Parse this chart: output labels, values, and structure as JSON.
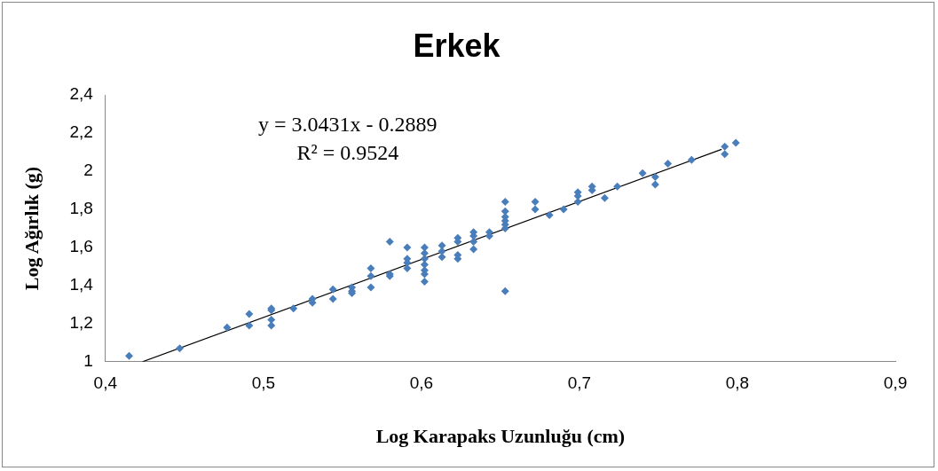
{
  "chart_data": {
    "type": "scatter",
    "title": "Erkek",
    "xlabel": "Log Karapaks Uzunluğu (cm)",
    "ylabel": "Log Ağırlık (g)",
    "xlim": [
      0.4,
      0.9
    ],
    "xticks": [
      {
        "value": 0.4,
        "label": "0,4"
      },
      {
        "value": 0.5,
        "label": "0,5"
      },
      {
        "value": 0.6,
        "label": "0,6"
      },
      {
        "value": 0.7,
        "label": "0,7"
      },
      {
        "value": 0.8,
        "label": "0,8"
      },
      {
        "value": 0.9,
        "label": "0,9"
      }
    ],
    "ylim": [
      1,
      2.4
    ],
    "yticks": [
      1,
      {
        "value": 1.2,
        "label": "1,2"
      },
      {
        "value": 1.4,
        "label": "1,4"
      },
      {
        "value": 1.6,
        "label": "1,6"
      },
      {
        "value": 1.8,
        "label": "1,8"
      },
      2,
      {
        "value": 2.2,
        "label": "2,2"
      },
      {
        "value": 2.4,
        "label": "2,4"
      }
    ],
    "grid": false,
    "legend": false,
    "marker": "diamond",
    "annotations": [
      "y = 3.0431x - 0.2889",
      "R² = 0.9524"
    ],
    "series": [
      {
        "color": "#4a7ebb",
        "x": [
          0.415,
          0.447,
          0.477,
          0.491,
          0.491,
          0.505,
          0.505,
          0.505,
          0.505,
          0.519,
          0.531,
          0.531,
          0.544,
          0.544,
          0.556,
          0.556,
          0.556,
          0.568,
          0.568,
          0.568,
          0.58,
          0.58,
          0.58,
          0.591,
          0.591,
          0.591,
          0.591,
          0.602,
          0.602,
          0.602,
          0.602,
          0.602,
          0.602,
          0.602,
          0.613,
          0.613,
          0.613,
          0.623,
          0.623,
          0.623,
          0.623,
          0.633,
          0.633,
          0.633,
          0.633,
          0.643,
          0.643,
          0.653,
          0.653,
          0.653,
          0.653,
          0.653,
          0.653,
          0.653,
          0.672,
          0.672,
          0.681,
          0.69,
          0.699,
          0.699,
          0.699,
          0.708,
          0.708,
          0.716,
          0.724,
          0.74,
          0.748,
          0.748,
          0.756,
          0.771,
          0.792,
          0.792,
          0.799
        ],
        "values": [
          1.03,
          1.07,
          1.18,
          1.25,
          1.19,
          1.28,
          1.27,
          1.22,
          1.19,
          1.28,
          1.33,
          1.31,
          1.38,
          1.33,
          1.39,
          1.37,
          1.36,
          1.49,
          1.45,
          1.39,
          1.63,
          1.46,
          1.45,
          1.6,
          1.54,
          1.52,
          1.49,
          1.6,
          1.57,
          1.54,
          1.51,
          1.48,
          1.46,
          1.42,
          1.61,
          1.58,
          1.55,
          1.65,
          1.63,
          1.56,
          1.54,
          1.68,
          1.66,
          1.63,
          1.59,
          1.68,
          1.66,
          1.84,
          1.79,
          1.76,
          1.74,
          1.72,
          1.7,
          1.37,
          1.84,
          1.8,
          1.77,
          1.8,
          1.89,
          1.87,
          1.84,
          1.92,
          1.9,
          1.86,
          1.92,
          1.99,
          1.97,
          1.93,
          2.04,
          2.06,
          2.13,
          2.09,
          2.15
        ]
      },
      {
        "type": "line",
        "color": "#000000",
        "marker": "none",
        "x": [
          0.4235,
          0.79
        ],
        "values": [
          1.0,
          2.115
        ]
      }
    ]
  }
}
